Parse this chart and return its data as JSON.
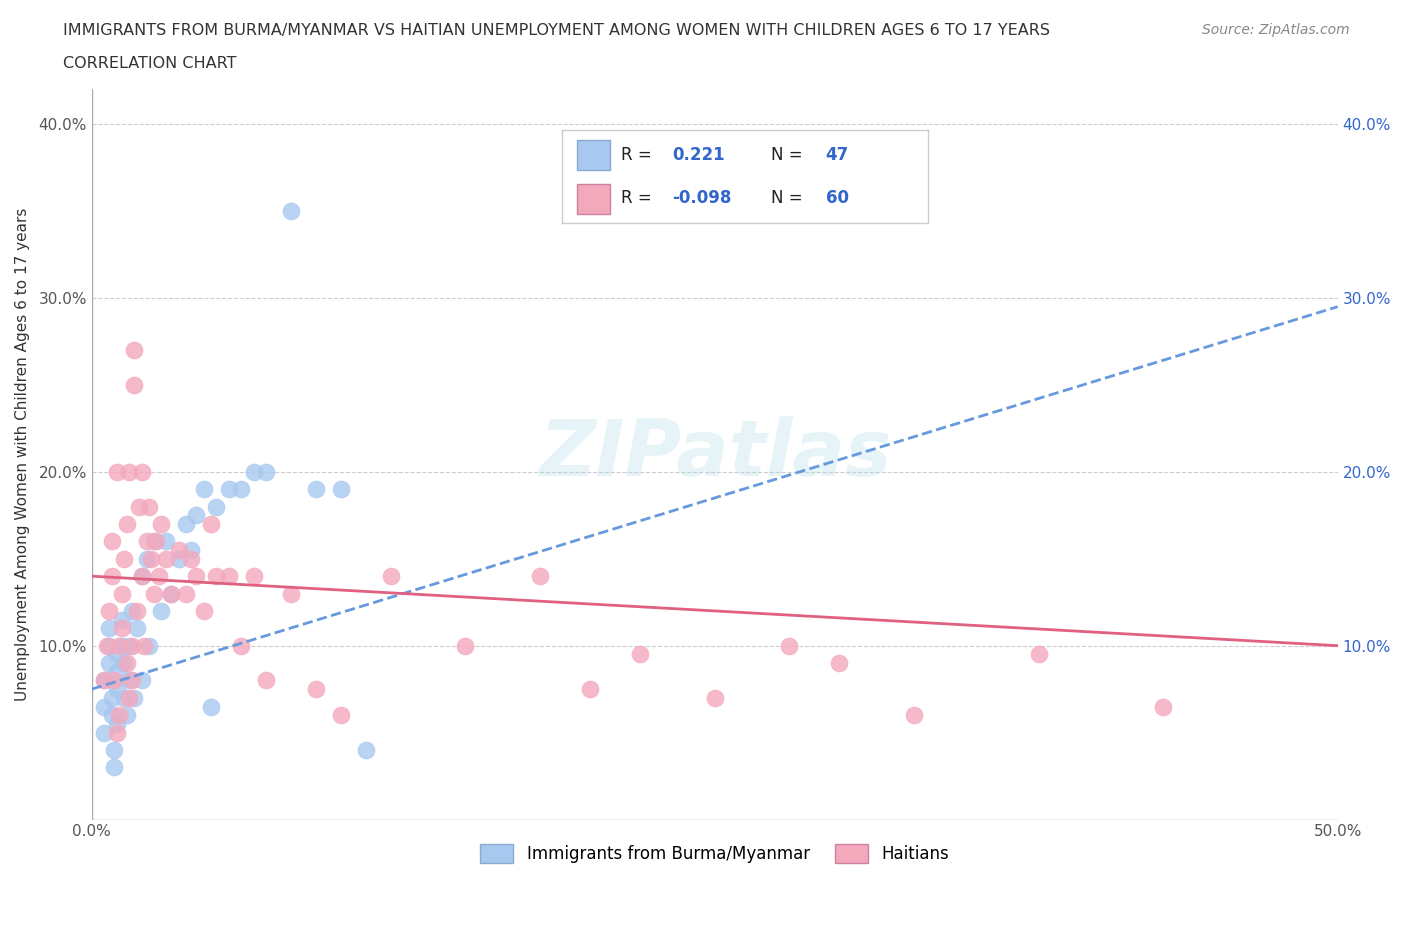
{
  "title_line1": "IMMIGRANTS FROM BURMA/MYANMAR VS HAITIAN UNEMPLOYMENT AMONG WOMEN WITH CHILDREN AGES 6 TO 17 YEARS",
  "title_line2": "CORRELATION CHART",
  "source": "Source: ZipAtlas.com",
  "ylabel": "Unemployment Among Women with Children Ages 6 to 17 years",
  "xlim": [
    0.0,
    0.5
  ],
  "ylim": [
    0.0,
    0.42
  ],
  "xticks": [
    0.0,
    0.1,
    0.2,
    0.3,
    0.4,
    0.5
  ],
  "yticks": [
    0.0,
    0.1,
    0.2,
    0.3,
    0.4
  ],
  "ytick_labels_left": [
    "",
    "10.0%",
    "20.0%",
    "30.0%",
    "40.0%"
  ],
  "ytick_labels_right": [
    "",
    "10.0%",
    "20.0%",
    "30.0%",
    "40.0%"
  ],
  "xtick_labels": [
    "0.0%",
    "",
    "",
    "",
    "",
    "50.0%"
  ],
  "gridline_color": "#cccccc",
  "background_color": "#ffffff",
  "blue_color": "#a8c8f0",
  "pink_color": "#f4a8bc",
  "blue_line_color": "#6699dd",
  "pink_line_color": "#e06080",
  "series1_label": "Immigrants from Burma/Myanmar",
  "series2_label": "Haitians",
  "blue_scatter_x": [
    0.005,
    0.005,
    0.005,
    0.007,
    0.007,
    0.007,
    0.008,
    0.008,
    0.009,
    0.009,
    0.01,
    0.01,
    0.01,
    0.01,
    0.012,
    0.012,
    0.013,
    0.013,
    0.014,
    0.015,
    0.015,
    0.016,
    0.017,
    0.018,
    0.02,
    0.02,
    0.022,
    0.023,
    0.025,
    0.028,
    0.03,
    0.032,
    0.035,
    0.038,
    0.04,
    0.042,
    0.045,
    0.048,
    0.05,
    0.055,
    0.06,
    0.065,
    0.07,
    0.08,
    0.09,
    0.1,
    0.11
  ],
  "blue_scatter_y": [
    0.05,
    0.065,
    0.08,
    0.09,
    0.1,
    0.11,
    0.06,
    0.07,
    0.04,
    0.03,
    0.055,
    0.075,
    0.085,
    0.095,
    0.1,
    0.115,
    0.07,
    0.09,
    0.06,
    0.08,
    0.1,
    0.12,
    0.07,
    0.11,
    0.14,
    0.08,
    0.15,
    0.1,
    0.16,
    0.12,
    0.16,
    0.13,
    0.15,
    0.17,
    0.155,
    0.175,
    0.19,
    0.065,
    0.18,
    0.19,
    0.19,
    0.2,
    0.2,
    0.35,
    0.19,
    0.19,
    0.04
  ],
  "pink_scatter_x": [
    0.005,
    0.006,
    0.007,
    0.008,
    0.008,
    0.009,
    0.01,
    0.01,
    0.011,
    0.011,
    0.012,
    0.012,
    0.013,
    0.014,
    0.014,
    0.015,
    0.015,
    0.016,
    0.016,
    0.017,
    0.017,
    0.018,
    0.019,
    0.02,
    0.02,
    0.021,
    0.022,
    0.023,
    0.024,
    0.025,
    0.026,
    0.027,
    0.028,
    0.03,
    0.032,
    0.035,
    0.038,
    0.04,
    0.042,
    0.045,
    0.048,
    0.05,
    0.055,
    0.06,
    0.065,
    0.07,
    0.08,
    0.09,
    0.1,
    0.12,
    0.15,
    0.18,
    0.2,
    0.22,
    0.25,
    0.28,
    0.3,
    0.33,
    0.38,
    0.43
  ],
  "pink_scatter_y": [
    0.08,
    0.1,
    0.12,
    0.14,
    0.16,
    0.08,
    0.05,
    0.2,
    0.06,
    0.1,
    0.11,
    0.13,
    0.15,
    0.17,
    0.09,
    0.07,
    0.2,
    0.08,
    0.1,
    0.27,
    0.25,
    0.12,
    0.18,
    0.14,
    0.2,
    0.1,
    0.16,
    0.18,
    0.15,
    0.13,
    0.16,
    0.14,
    0.17,
    0.15,
    0.13,
    0.155,
    0.13,
    0.15,
    0.14,
    0.12,
    0.17,
    0.14,
    0.14,
    0.1,
    0.14,
    0.08,
    0.13,
    0.075,
    0.06,
    0.14,
    0.1,
    0.14,
    0.075,
    0.095,
    0.07,
    0.1,
    0.09,
    0.06,
    0.095,
    0.065
  ],
  "blue_trend_x": [
    0.0,
    0.5
  ],
  "blue_trend_y": [
    0.075,
    0.295
  ],
  "pink_trend_x": [
    0.0,
    0.5
  ],
  "pink_trend_y": [
    0.14,
    0.1
  ],
  "legend_text_color": "#3366cc",
  "legend_label_color": "#222222"
}
